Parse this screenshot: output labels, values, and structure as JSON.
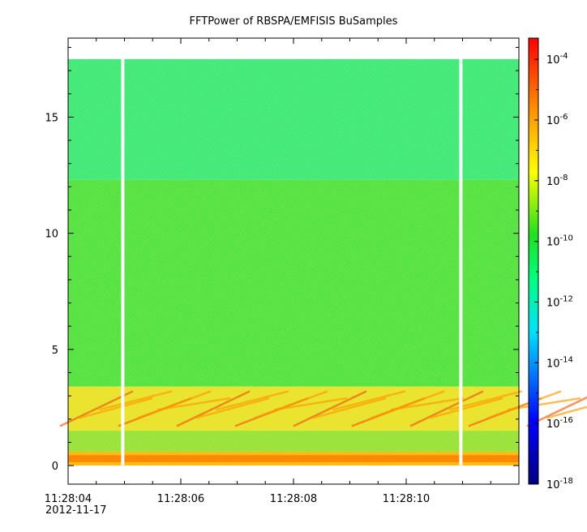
{
  "chart_data": {
    "type": "heatmap",
    "title": "FFTPower of RBSPA/EMFISIS  BuSamples",
    "xlabel": "",
    "ylabel": "",
    "x_ticks": [
      "11:28:04",
      "11:28:06",
      "11:28:08",
      "11:28:10"
    ],
    "x_date_label": "2012-11-17",
    "x_range_seconds_after_11_28_04": [
      0,
      8
    ],
    "y_ticks": [
      0,
      5,
      10,
      15
    ],
    "ylim": [
      -0.8,
      18.4
    ],
    "data_y_range": [
      0,
      17.5
    ],
    "colorbar": {
      "scale": "log",
      "range": [
        1e-18,
        0.0005
      ],
      "tick_exponents": [
        -4,
        -6,
        -8,
        -10,
        -12,
        -14,
        -16,
        -18
      ],
      "tick_base": "10",
      "colormap": [
        "#00007f",
        "#0000ff",
        "#00ffff",
        "#00ff00",
        "#ffff00",
        "#ff8000",
        "#ff0000"
      ]
    },
    "data_gaps_time_seconds": [
      0.97,
      6.97
    ],
    "bands": [
      {
        "y_from": 12.3,
        "y_to": 17.5,
        "level": "1e-12",
        "color": "#22e87a"
      },
      {
        "y_from": 3.4,
        "y_to": 12.3,
        "level": "1e-10",
        "color": "#3ae03a"
      },
      {
        "y_from": 1.5,
        "y_to": 3.4,
        "level": "1e-8 with 1e-7 streaks",
        "color": "#e8e020"
      },
      {
        "y_from": 0.6,
        "y_to": 1.5,
        "level": "1e-10",
        "color": "#88e030"
      },
      {
        "y_from": 0,
        "y_to": 0.6,
        "level": "1e-8",
        "color": "#ffb000"
      }
    ],
    "grid": false,
    "legend": "none"
  }
}
